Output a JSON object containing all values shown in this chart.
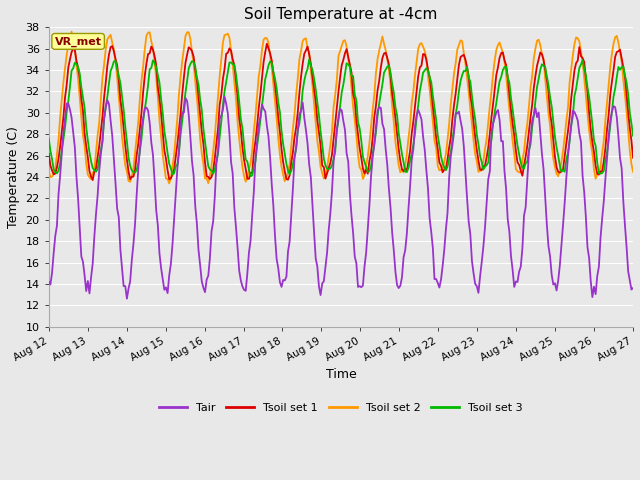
{
  "title": "Soil Temperature at -4cm",
  "xlabel": "Time",
  "ylabel": "Temperature (C)",
  "ylim": [
    10,
    38
  ],
  "yticks": [
    10,
    12,
    14,
    16,
    18,
    20,
    22,
    24,
    26,
    28,
    30,
    32,
    34,
    36,
    38
  ],
  "bg_color": "#e8e8e8",
  "plot_bg_color": "#e8e8e8",
  "grid_color": "#ffffff",
  "colors": {
    "Tair": "#9933cc",
    "Tsoil1": "#dd0000",
    "Tsoil2": "#ff9900",
    "Tsoil3": "#00bb00"
  },
  "legend_labels": [
    "Tair",
    "Tsoil set 1",
    "Tsoil set 2",
    "Tsoil set 3"
  ],
  "annotation_text": "VR_met"
}
